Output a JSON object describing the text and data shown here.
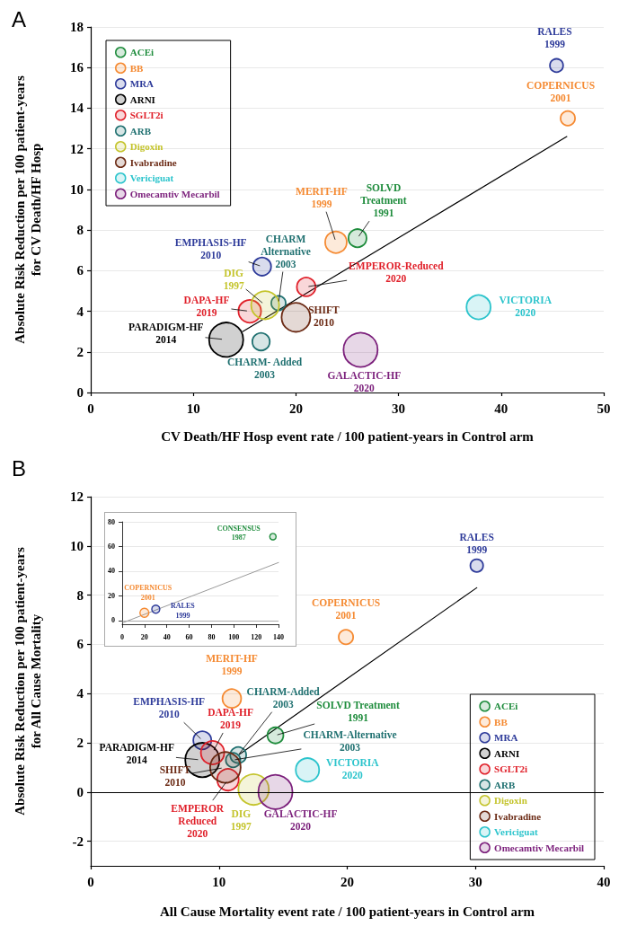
{
  "chart_data": [
    {
      "type": "bubble",
      "title": "A",
      "xlabel": "CV Death/HF Hosp event rate / 100 patient-years in Control arm",
      "ylabel": "Absolute Risk Reduction per 100 patient-years\nfor CV Death/HF Hosp",
      "xlim": [
        0,
        50
      ],
      "xticks": [
        0,
        10,
        20,
        30,
        40,
        50
      ],
      "ylim": [
        0,
        18
      ],
      "yticks": [
        0,
        2,
        4,
        6,
        8,
        10,
        12,
        14,
        16,
        18
      ],
      "grid": "y",
      "legend": "top left",
      "series": [
        {
          "name": "ACEi",
          "color": "#1e8c3c",
          "x": [
            26.0
          ],
          "values": [
            7.6
          ],
          "sizes": [
            0.28
          ]
        },
        {
          "name": "BB",
          "color": "#f58a32",
          "x": [
            23.9,
            46.5
          ],
          "values": [
            7.4,
            13.5
          ],
          "sizes": [
            0.4,
            0.18
          ]
        },
        {
          "name": "MRA",
          "color": "#2e3b9a",
          "x": [
            45.4,
            16.7
          ],
          "values": [
            16.1,
            6.2
          ],
          "sizes": [
            0.15,
            0.28
          ]
        },
        {
          "name": "ARNI",
          "color": "#000000",
          "x": [
            13.2
          ],
          "values": [
            2.6
          ],
          "sizes": [
            1.0
          ]
        },
        {
          "name": "SGLT2i",
          "color": "#e0202a",
          "x": [
            15.5,
            21.0
          ],
          "values": [
            4.0,
            5.2
          ],
          "sizes": [
            0.44,
            0.3
          ]
        },
        {
          "name": "ARB",
          "color": "#1f7070",
          "x": [
            18.3,
            16.6
          ],
          "values": [
            4.4,
            2.5
          ],
          "sizes": [
            0.18,
            0.26
          ]
        },
        {
          "name": "Digoxin",
          "color": "#c4c42c",
          "x": [
            17.0
          ],
          "values": [
            4.3
          ],
          "sizes": [
            0.67
          ]
        },
        {
          "name": "Ivabradine",
          "color": "#6b2a14",
          "x": [
            20.0
          ],
          "values": [
            3.7
          ],
          "sizes": [
            0.71
          ]
        },
        {
          "name": "Vericiguat",
          "color": "#2cc4cc",
          "x": [
            37.8
          ],
          "values": [
            4.2
          ],
          "sizes": [
            0.5
          ]
        },
        {
          "name": "Omecamtiv Mecarbil",
          "color": "#7b1f7b",
          "x": [
            26.3
          ],
          "values": [
            2.1
          ],
          "sizes": [
            1.0
          ]
        },
        {
          "type": "line",
          "color": "#000000",
          "marker": "none",
          "x": [
            14.8,
            46.4
          ],
          "values": [
            3.0,
            12.6
          ]
        }
      ],
      "annotations": [
        {
          "text": "RALES\n1999",
          "x": 45.4,
          "y": 16.1
        },
        {
          "text": "COPERNICUS\n2001",
          "x": 46.5,
          "y": 13.5
        },
        {
          "text": "MERIT-HF\n1999",
          "x": 23.9,
          "y": 7.4
        },
        {
          "text": "SOLVD\nTreatment\n1991",
          "x": 26.0,
          "y": 7.6
        },
        {
          "text": "CHARM\nAlternative\n2003",
          "x": 18.3,
          "y": 4.4
        },
        {
          "text": "EMPHASIS-HF\n2010",
          "x": 16.7,
          "y": 6.2
        },
        {
          "text": "EMPEROR-Reduced\n2020",
          "x": 21.0,
          "y": 5.2
        },
        {
          "text": "DIG\n1997",
          "x": 17.0,
          "y": 4.3
        },
        {
          "text": "DAPA-HF\n2019",
          "x": 15.5,
          "y": 4.0
        },
        {
          "text": "SHIFT\n2010",
          "x": 20.0,
          "y": 3.7
        },
        {
          "text": "PARADIGM-HF\n2014",
          "x": 13.2,
          "y": 2.6
        },
        {
          "text": "CHARM- Added\n2003",
          "x": 16.6,
          "y": 2.5
        },
        {
          "text": "GALACTIC-HF\n2020",
          "x": 26.3,
          "y": 2.1
        },
        {
          "text": "VICTORIA\n2020",
          "x": 37.8,
          "y": 4.2
        }
      ]
    },
    {
      "type": "bubble",
      "title": "B",
      "xlabel": "All Cause Mortality event rate / 100 patient-years in Control arm",
      "ylabel": "Absolute Risk Reduction per 100 patient-years\nfor All Cause Mortality",
      "xlim": [
        0,
        40
      ],
      "xticks": [
        0,
        10,
        20,
        30,
        40
      ],
      "ylim": [
        -3,
        12
      ],
      "yticks": [
        -2,
        0,
        2,
        4,
        6,
        8,
        10,
        12
      ],
      "grid": "y",
      "legend": "bottom right",
      "ref_lines": [
        {
          "axis": "y",
          "value": 0,
          "color": "#000000"
        }
      ],
      "series": [
        {
          "name": "ACEi",
          "color": "#1e8c3c",
          "x": [
            14.4
          ],
          "values": [
            2.3
          ],
          "sizes": [
            0.22
          ]
        },
        {
          "name": "BB",
          "color": "#f58a32",
          "x": [
            11.0,
            19.9
          ],
          "values": [
            3.8,
            6.3
          ],
          "sizes": [
            0.3,
            0.18
          ]
        },
        {
          "name": "MRA",
          "color": "#2e3b9a",
          "x": [
            30.1,
            8.7
          ],
          "values": [
            9.2,
            2.1
          ],
          "sizes": [
            0.14,
            0.28
          ]
        },
        {
          "name": "ARNI",
          "color": "#000000",
          "x": [
            8.7
          ],
          "values": [
            1.3
          ],
          "sizes": [
            1.0
          ]
        },
        {
          "name": "SGLT2i",
          "color": "#e0202a",
          "x": [
            9.5,
            10.7
          ],
          "values": [
            1.6,
            0.5
          ],
          "sizes": [
            0.47,
            0.4
          ]
        },
        {
          "name": "ARB",
          "color": "#1f7070",
          "x": [
            11.5,
            11.1
          ],
          "values": [
            1.5,
            1.3
          ],
          "sizes": [
            0.22,
            0.18
          ]
        },
        {
          "name": "Digoxin",
          "color": "#c4c42c",
          "x": [
            12.7
          ],
          "values": [
            0.1
          ],
          "sizes": [
            0.8
          ]
        },
        {
          "name": "Ivabradine",
          "color": "#6b2a14",
          "x": [
            10.5
          ],
          "values": [
            1.0
          ],
          "sizes": [
            0.8
          ]
        },
        {
          "name": "Vericiguat",
          "color": "#2cc4cc",
          "x": [
            16.9
          ],
          "values": [
            0.9
          ],
          "sizes": [
            0.47
          ]
        },
        {
          "name": "Omecamtiv Mecarbil",
          "color": "#7b1f7b",
          "x": [
            14.4
          ],
          "values": [
            0.0
          ],
          "sizes": [
            1.0
          ]
        },
        {
          "type": "line",
          "color": "#000000",
          "marker": "none",
          "x": [
            11.5,
            30.1
          ],
          "values": [
            1.5,
            8.3
          ]
        }
      ],
      "annotations": [
        {
          "text": "RALES\n1999",
          "x": 30.1,
          "y": 9.2
        },
        {
          "text": "COPERNICUS\n2001",
          "x": 19.9,
          "y": 6.3
        },
        {
          "text": "MERIT-HF\n1999",
          "x": 11.0,
          "y": 3.8
        },
        {
          "text": "CHARM-Added\n2003",
          "x": 11.5,
          "y": 1.5
        },
        {
          "text": "EMPHASIS-HF\n2010",
          "x": 8.7,
          "y": 2.1
        },
        {
          "text": "DAPA-HF\n2019",
          "x": 9.5,
          "y": 1.6
        },
        {
          "text": "SOLVD Treatment\n1991",
          "x": 14.4,
          "y": 2.3
        },
        {
          "text": "CHARM-Alternative\n2003",
          "x": 11.1,
          "y": 1.3
        },
        {
          "text": "PARADIGM-HF\n2014",
          "x": 8.7,
          "y": 1.3
        },
        {
          "text": "SHIFT\n2010",
          "x": 10.5,
          "y": 1.0
        },
        {
          "text": "EMPEROR\nReduced\n2020",
          "x": 10.7,
          "y": 0.5
        },
        {
          "text": "DIG\n1997",
          "x": 12.7,
          "y": 0.1
        },
        {
          "text": "GALACTIC-HF\n2020",
          "x": 14.4,
          "y": 0.0
        },
        {
          "text": "VICTORIA\n2020",
          "x": 16.9,
          "y": 0.9
        }
      ]
    },
    {
      "type": "bubble",
      "xlim": [
        0,
        140
      ],
      "xticks": [
        0,
        20,
        40,
        60,
        80,
        100,
        120,
        140
      ],
      "ylim": [
        -3,
        80
      ],
      "yticks": [
        0,
        20,
        40,
        60,
        80
      ],
      "grid": "y",
      "ref_lines": [
        {
          "axis": "y",
          "value": 0,
          "color": "#999999"
        }
      ],
      "series": [
        {
          "color": "#1e8c3c",
          "x": [
            135
          ],
          "values": [
            68
          ],
          "sizes": [
            0.5
          ]
        },
        {
          "color": "#f58a32",
          "x": [
            19.9
          ],
          "values": [
            6.3
          ],
          "sizes": [
            1.0
          ]
        },
        {
          "color": "#2e3b9a",
          "x": [
            30.1
          ],
          "values": [
            9.2
          ],
          "sizes": [
            0.8
          ]
        },
        {
          "type": "line",
          "color": "#808080",
          "marker": "none",
          "x": [
            0,
            140
          ],
          "values": [
            -2,
            47
          ]
        }
      ],
      "annotations": [
        {
          "text": "CONSENSUS\n1987",
          "x": 135,
          "y": 68
        },
        {
          "text": "COPERNICUS\n2001",
          "x": 19.9,
          "y": 6.3
        },
        {
          "text": "RALES\n1999",
          "x": 30.1,
          "y": 9.2
        }
      ]
    }
  ]
}
